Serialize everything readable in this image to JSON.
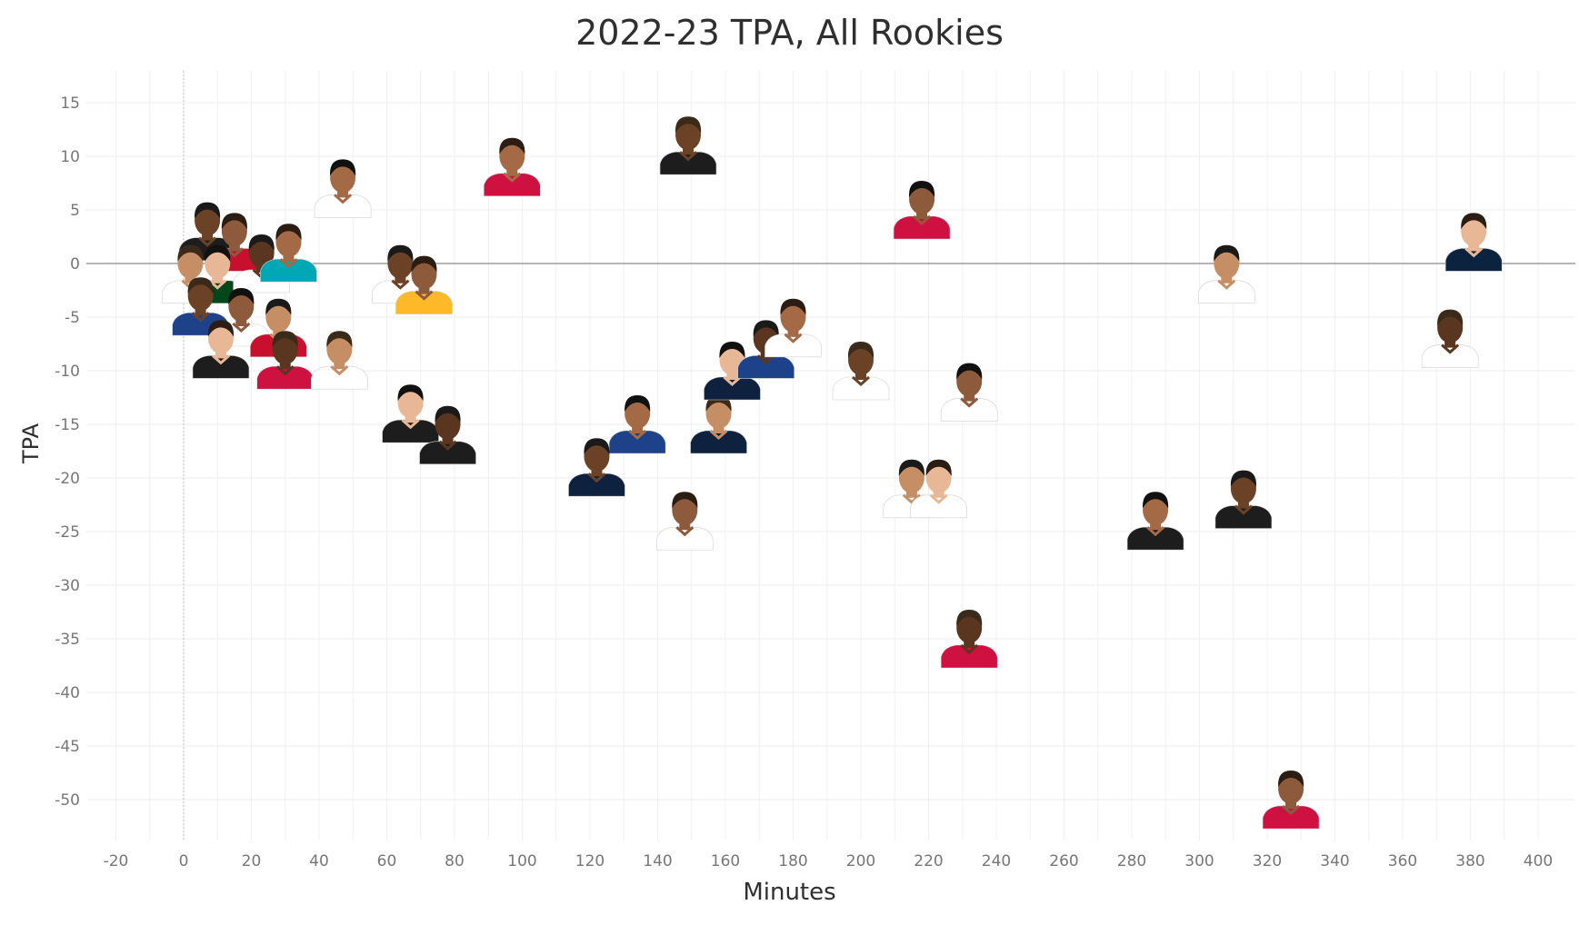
{
  "chart_data": {
    "type": "scatter",
    "title": "2022-23 TPA, All Rookies",
    "xlabel": "Minutes",
    "ylabel": "TPA",
    "xlim": [
      -25,
      410
    ],
    "ylim": [
      -54,
      18
    ],
    "x_ticks": [
      -20,
      0,
      20,
      40,
      60,
      80,
      100,
      120,
      140,
      160,
      180,
      200,
      220,
      240,
      260,
      280,
      300,
      320,
      340,
      360,
      380,
      400
    ],
    "y_ticks": [
      15,
      10,
      5,
      0,
      -5,
      -10,
      -15,
      -20,
      -25,
      -30,
      -35,
      -40,
      -45,
      -50
    ],
    "grid": true,
    "marker": "player-headshot",
    "points": [
      {
        "x": 7,
        "y": 3,
        "jersey": "#1d1d1d"
      },
      {
        "x": 15,
        "y": 2,
        "jersey": "#c8102e"
      },
      {
        "x": 2,
        "y": -1,
        "jersey": "#ffffff"
      },
      {
        "x": 10,
        "y": -1,
        "jersey": "#00471b"
      },
      {
        "x": 23,
        "y": 0,
        "jersey": "#ffffff"
      },
      {
        "x": 31,
        "y": 1,
        "jersey": "#00a7b5"
      },
      {
        "x": 5,
        "y": -4,
        "jersey": "#1d428a"
      },
      {
        "x": 17,
        "y": -5,
        "jersey": "#ffffff"
      },
      {
        "x": 28,
        "y": -6,
        "jersey": "#c8102e"
      },
      {
        "x": 11,
        "y": -8,
        "jersey": "#1d1d1d"
      },
      {
        "x": 30,
        "y": -9,
        "jersey": "#ce1141"
      },
      {
        "x": 47,
        "y": 7,
        "jersey": "#ffffff"
      },
      {
        "x": 64,
        "y": -1,
        "jersey": "#ffffff"
      },
      {
        "x": 71,
        "y": -2,
        "jersey": "#fdb927"
      },
      {
        "x": 46,
        "y": -9,
        "jersey": "#ffffff"
      },
      {
        "x": 67,
        "y": -14,
        "jersey": "#1d1d1d"
      },
      {
        "x": 78,
        "y": -16,
        "jersey": "#1d1d1d"
      },
      {
        "x": 97,
        "y": 9,
        "jersey": "#ce1141"
      },
      {
        "x": 149,
        "y": 11,
        "jersey": "#1d1d1d"
      },
      {
        "x": 218,
        "y": 5,
        "jersey": "#ce1141"
      },
      {
        "x": 308,
        "y": -1,
        "jersey": "#ffffff"
      },
      {
        "x": 381,
        "y": 2,
        "jersey": "#0c2340"
      },
      {
        "x": 374,
        "y": -7,
        "jersey": "#ffffff"
      },
      {
        "x": 134,
        "y": -15,
        "jersey": "#1d428a"
      },
      {
        "x": 122,
        "y": -19,
        "jersey": "#0e2240"
      },
      {
        "x": 148,
        "y": -24,
        "jersey": "#ffffff"
      },
      {
        "x": 158,
        "y": -15,
        "jersey": "#0e2240"
      },
      {
        "x": 162,
        "y": -10,
        "jersey": "#0e2240"
      },
      {
        "x": 172,
        "y": -8,
        "jersey": "#1d428a"
      },
      {
        "x": 180,
        "y": -6,
        "jersey": "#ffffff"
      },
      {
        "x": 200,
        "y": -10,
        "jersey": "#ffffff"
      },
      {
        "x": 232,
        "y": -12,
        "jersey": "#ffffff"
      },
      {
        "x": 215,
        "y": -21,
        "jersey": "#ffffff"
      },
      {
        "x": 223,
        "y": -21,
        "jersey": "#ffffff"
      },
      {
        "x": 232,
        "y": -35,
        "jersey": "#ce1141"
      },
      {
        "x": 287,
        "y": -24,
        "jersey": "#1d1d1d"
      },
      {
        "x": 313,
        "y": -22,
        "jersey": "#1d1d1d"
      },
      {
        "x": 327,
        "y": -50,
        "jersey": "#ce1141"
      }
    ]
  }
}
